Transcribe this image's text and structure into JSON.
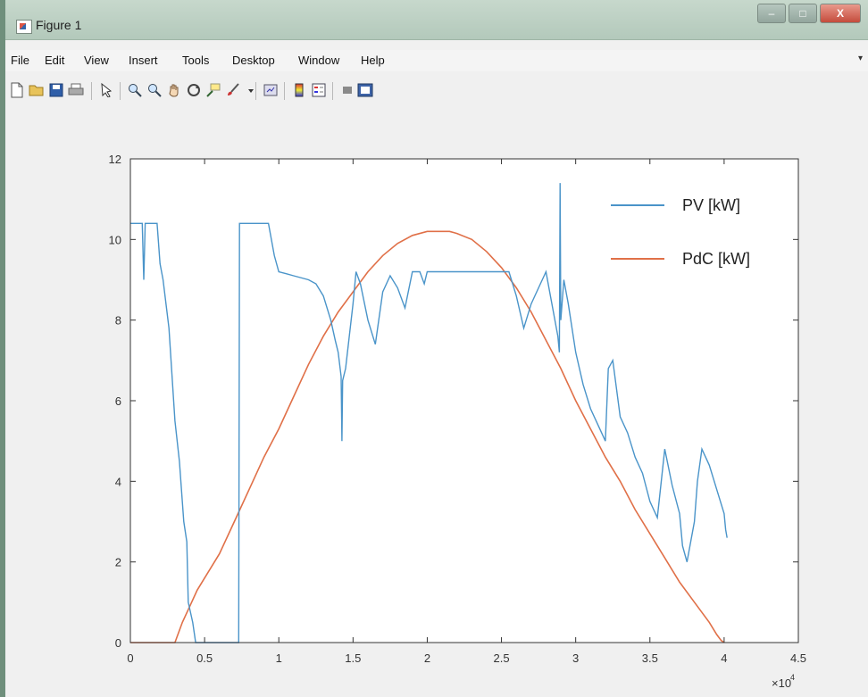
{
  "window": {
    "title": "Figure 1",
    "controls": {
      "minimize": "–",
      "maximize": "□",
      "close": "X"
    }
  },
  "menu": {
    "items": [
      "File",
      "Edit",
      "View",
      "Insert",
      "Tools",
      "Desktop",
      "Window",
      "Help"
    ],
    "overflow_arrow": "▾"
  },
  "toolbar": {
    "icons": [
      "new-figure-icon",
      "open-file-icon",
      "save-icon",
      "print-icon",
      "edit-plot-icon",
      "zoom-in-icon",
      "zoom-out-icon",
      "pan-icon",
      "rotate-3d-icon",
      "data-cursor-icon",
      "brush-icon",
      "brush-dropdown-icon",
      "link-plot-icon",
      "insert-colorbar-icon",
      "insert-legend-icon",
      "hide-plot-tools-icon",
      "show-plot-tools-icon"
    ]
  },
  "colors": {
    "pv": "#4a94c9",
    "pdc": "#e07048",
    "axes": "#333333",
    "plot_background": "#ffffff"
  },
  "chart_data": {
    "type": "line",
    "title": "",
    "xlabel": "",
    "ylabel": "",
    "xlim": [
      0,
      4.5
    ],
    "ylim": [
      0,
      12
    ],
    "x_exponent_label": "×10",
    "x_exponent_power": "4",
    "x_ticks": [
      0,
      0.5,
      1,
      1.5,
      2,
      2.5,
      3,
      3.5,
      4,
      4.5
    ],
    "x_tick_labels": [
      "0",
      "0.5",
      "1",
      "1.5",
      "2",
      "2.5",
      "3",
      "3.5",
      "4",
      "4.5"
    ],
    "y_ticks": [
      0,
      2,
      4,
      6,
      8,
      10,
      12
    ],
    "y_tick_labels": [
      "0",
      "2",
      "4",
      "6",
      "8",
      "10",
      "12"
    ],
    "grid": false,
    "legend_position": "top-right",
    "series": [
      {
        "name": "PV [kW]",
        "color": "#4a94c9",
        "x": [
          0,
          0.08,
          0.09,
          0.1,
          0.18,
          0.2,
          0.22,
          0.26,
          0.3,
          0.33,
          0.36,
          0.38,
          0.39,
          0.42,
          0.44,
          0.46,
          0.465,
          0.47,
          0.5,
          0.72,
          0.73,
          0.735,
          0.74,
          0.8,
          0.82,
          0.86,
          0.9,
          0.93,
          0.97,
          1.0,
          1.05,
          1.1,
          1.2,
          1.25,
          1.3,
          1.35,
          1.38,
          1.4,
          1.42,
          1.425,
          1.43,
          1.45,
          1.5,
          1.52,
          1.55,
          1.6,
          1.65,
          1.7,
          1.75,
          1.8,
          1.85,
          1.9,
          1.95,
          1.98,
          2.0,
          2.05,
          2.1,
          2.15,
          2.2,
          2.25,
          2.3,
          2.35,
          2.4,
          2.45,
          2.5,
          2.55,
          2.6,
          2.65,
          2.7,
          2.75,
          2.8,
          2.82,
          2.85,
          2.88,
          2.89,
          2.895,
          2.9,
          2.92,
          2.95,
          3.0,
          3.05,
          3.1,
          3.15,
          3.2,
          3.22,
          3.25,
          3.3,
          3.35,
          3.4,
          3.45,
          3.5,
          3.55,
          3.6,
          3.65,
          3.7,
          3.72,
          3.75,
          3.8,
          3.82,
          3.85,
          3.9,
          3.95,
          4.0,
          4.01,
          4.02
        ],
        "y": [
          10.4,
          10.4,
          9.0,
          10.4,
          10.4,
          9.4,
          9.0,
          7.8,
          5.5,
          4.5,
          3.0,
          2.5,
          1.0,
          0.5,
          0,
          0,
          0,
          0,
          0,
          0,
          0,
          10.4,
          10.4,
          10.4,
          10.4,
          10.4,
          10.4,
          10.4,
          9.6,
          9.2,
          9.15,
          9.1,
          9.0,
          8.9,
          8.6,
          8.0,
          7.5,
          7.2,
          6.6,
          5.0,
          6.5,
          6.8,
          8.4,
          9.2,
          8.9,
          8.0,
          7.4,
          8.7,
          9.1,
          8.8,
          8.3,
          9.2,
          9.2,
          8.9,
          9.2,
          9.2,
          9.2,
          9.2,
          9.2,
          9.2,
          9.2,
          9.2,
          9.2,
          9.2,
          9.2,
          9.2,
          8.6,
          7.8,
          8.4,
          8.8,
          9.2,
          8.8,
          8.2,
          7.6,
          7.2,
          11.4,
          8.0,
          9.0,
          8.4,
          7.2,
          6.4,
          5.8,
          5.4,
          5.0,
          6.8,
          7.0,
          5.6,
          5.2,
          4.6,
          4.2,
          3.5,
          3.1,
          4.8,
          3.9,
          3.2,
          2.4,
          2.0,
          3.0,
          4.0,
          4.8,
          4.4,
          3.8,
          3.2,
          2.8,
          2.6
        ]
      },
      {
        "name": "PdC [kW]",
        "color": "#e07048",
        "x": [
          0,
          0.1,
          0.2,
          0.3,
          0.35,
          0.4,
          0.45,
          0.5,
          0.6,
          0.7,
          0.8,
          0.9,
          1.0,
          1.1,
          1.2,
          1.3,
          1.4,
          1.5,
          1.6,
          1.7,
          1.8,
          1.9,
          2.0,
          2.1,
          2.15,
          2.2,
          2.3,
          2.4,
          2.5,
          2.6,
          2.7,
          2.8,
          2.9,
          3.0,
          3.1,
          3.2,
          3.3,
          3.4,
          3.5,
          3.6,
          3.7,
          3.8,
          3.9,
          3.95,
          3.98,
          4.0
        ],
        "y": [
          0,
          0,
          0,
          0,
          0.5,
          0.9,
          1.3,
          1.6,
          2.2,
          3.0,
          3.8,
          4.6,
          5.3,
          6.1,
          6.9,
          7.6,
          8.2,
          8.7,
          9.2,
          9.6,
          9.9,
          10.1,
          10.2,
          10.2,
          10.2,
          10.15,
          10.0,
          9.7,
          9.3,
          8.8,
          8.2,
          7.5,
          6.8,
          6.0,
          5.3,
          4.6,
          4.0,
          3.3,
          2.7,
          2.1,
          1.5,
          1.0,
          0.5,
          0.2,
          0.05,
          0
        ]
      }
    ]
  }
}
